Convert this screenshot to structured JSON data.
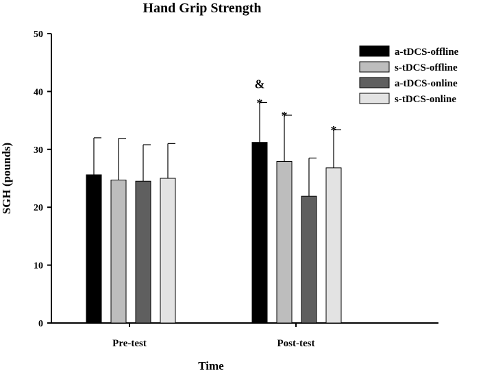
{
  "chart_data": {
    "type": "bar",
    "title": "Hand Grip Strength",
    "xlabel": "Time",
    "ylabel": "SGH (pounds)",
    "ylim": [
      0,
      50
    ],
    "yticks": [
      0,
      10,
      20,
      30,
      40,
      50
    ],
    "categories": [
      "Pre-test",
      "Post-test"
    ],
    "legend_position": "top-right",
    "series": [
      {
        "name": "a-tDCS-offline",
        "color": "#000000",
        "values": [
          25.6,
          31.2
        ],
        "errors": [
          6.4,
          6.9
        ]
      },
      {
        "name": "s-tDCS-offline",
        "color": "#bdbdbd",
        "values": [
          24.7,
          27.9
        ],
        "errors": [
          7.2,
          8.0
        ]
      },
      {
        "name": "a-tDCS-online",
        "color": "#5f5f5f",
        "values": [
          24.5,
          21.9
        ],
        "errors": [
          6.3,
          6.6
        ]
      },
      {
        "name": "s-tDCS-online",
        "color": "#e3e3e3",
        "values": [
          25.0,
          26.8
        ],
        "errors": [
          6.0,
          6.6
        ]
      }
    ],
    "annotations": [
      {
        "category": "Post-test",
        "series": "a-tDCS-offline",
        "text": "&"
      },
      {
        "category": "Post-test",
        "series": "a-tDCS-offline",
        "text": "*"
      },
      {
        "category": "Post-test",
        "series": "s-tDCS-offline",
        "text": "*"
      },
      {
        "category": "Post-test",
        "series": "s-tDCS-online",
        "text": "*"
      }
    ]
  }
}
